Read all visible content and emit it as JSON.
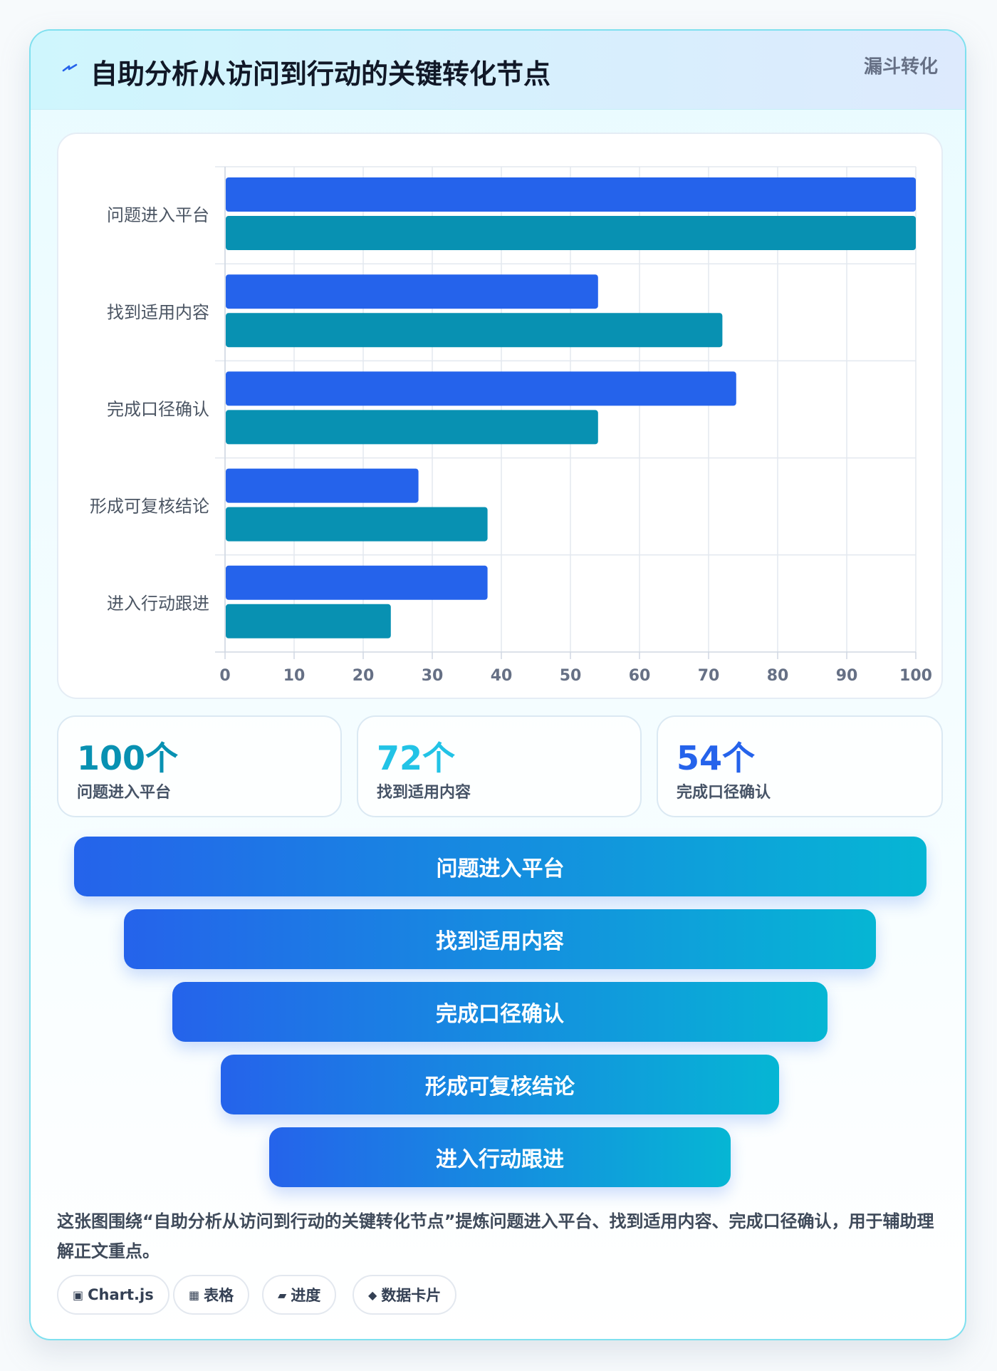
{
  "card": {
    "title": "自助分析从访问到行动的关键转化节点",
    "tag": "漏斗转化",
    "icon": "bolt-icon"
  },
  "chart_data": {
    "type": "bar",
    "orientation": "horizontal",
    "categories": [
      "问题进入平台",
      "找到适用内容",
      "完成口径确认",
      "形成可复核结论",
      "进入行动跟进"
    ],
    "series": [
      {
        "values": [
          100,
          54,
          74,
          28,
          38
        ],
        "color": "#2563eb"
      },
      {
        "values": [
          100,
          72,
          54,
          38,
          24
        ],
        "color": "#0891b2"
      }
    ],
    "xlim": [
      0,
      100
    ],
    "x_ticks": [
      0,
      10,
      20,
      30,
      40,
      50,
      60,
      70,
      80,
      90,
      100
    ],
    "grid": true,
    "legend": "none"
  },
  "stats": [
    {
      "value": "100个",
      "label": "问题进入平台",
      "color": "#0891b2"
    },
    {
      "value": "72个",
      "label": "找到适用内容",
      "color": "#22c3e6"
    },
    {
      "value": "54个",
      "label": "完成口径确认",
      "color": "#2563eb"
    }
  ],
  "funnel": [
    "问题进入平台",
    "找到适用内容",
    "完成口径确认",
    "形成可复核结论",
    "进入行动跟进"
  ],
  "description": "这张图围绕“自助分析从访问到行动的关键转化节点”提炼问题进入平台、找到适用内容、完成口径确认，用于辅助理解正文重点。",
  "pills": [
    {
      "icon": "▣",
      "icon_name": "chart-icon",
      "label": "Chart.js"
    },
    {
      "icon": "▦",
      "icon_name": "table-icon",
      "label": "表格"
    },
    {
      "icon": "▰",
      "icon_name": "progress-icon",
      "label": "进度"
    },
    {
      "icon": "◆",
      "icon_name": "diamond-icon",
      "label": "数据卡片"
    }
  ]
}
